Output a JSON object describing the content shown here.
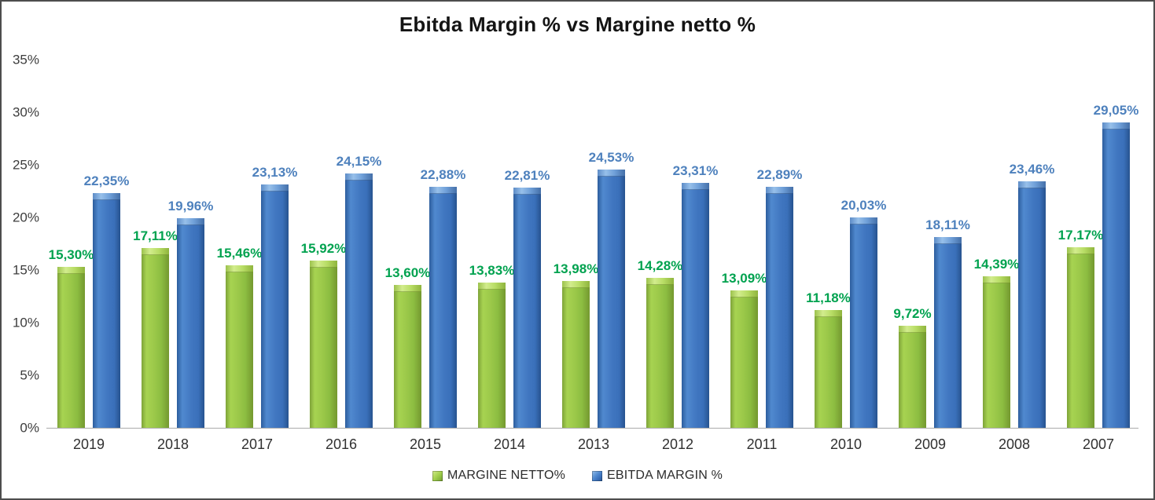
{
  "title": "Ebitda Margin % vs Margine netto %",
  "chart_data": {
    "type": "bar",
    "title": "Ebitda Margin % vs Margine netto %",
    "categories": [
      "2019",
      "2018",
      "2017",
      "2016",
      "2015",
      "2014",
      "2013",
      "2012",
      "2011",
      "2010",
      "2009",
      "2008",
      "2007"
    ],
    "series": [
      {
        "name": "MARGINE NETTO%",
        "slug": "margine-netto",
        "color": "#8fbd41",
        "label_color": "#00a24f",
        "values": [
          15.3,
          17.11,
          15.46,
          15.92,
          13.6,
          13.83,
          13.98,
          14.28,
          13.09,
          11.18,
          9.72,
          14.39,
          17.17
        ],
        "labels": [
          "15,30%",
          "17,11%",
          "15,46%",
          "15,92%",
          "13,60%",
          "13,83%",
          "13,98%",
          "14,28%",
          "13,09%",
          "11,18%",
          "9,72%",
          "14,39%",
          "17,17%"
        ]
      },
      {
        "name": "EBITDA MARGIN %",
        "slug": "ebitda-margin",
        "color": "#3e76c0",
        "label_color": "#4e81bd",
        "values": [
          22.35,
          19.96,
          23.13,
          24.15,
          22.88,
          22.81,
          24.53,
          23.31,
          22.89,
          20.03,
          18.11,
          23.46,
          29.05
        ],
        "labels": [
          "22,35%",
          "19,96%",
          "23,13%",
          "24,15%",
          "22,88%",
          "22,81%",
          "24,53%",
          "23,31%",
          "22,89%",
          "20,03%",
          "18,11%",
          "23,46%",
          "29,05%"
        ]
      }
    ],
    "xlabel": "",
    "ylabel": "",
    "ylim": [
      0,
      35
    ],
    "yticks": [
      {
        "value": 0,
        "label": "0%"
      },
      {
        "value": 5,
        "label": "5%"
      },
      {
        "value": 10,
        "label": "10%"
      },
      {
        "value": 15,
        "label": "15%"
      },
      {
        "value": 20,
        "label": "20%"
      },
      {
        "value": 25,
        "label": "25%"
      },
      {
        "value": 30,
        "label": "30%"
      },
      {
        "value": 35,
        "label": "35%"
      }
    ],
    "grid": false,
    "legend_position": "bottom"
  }
}
